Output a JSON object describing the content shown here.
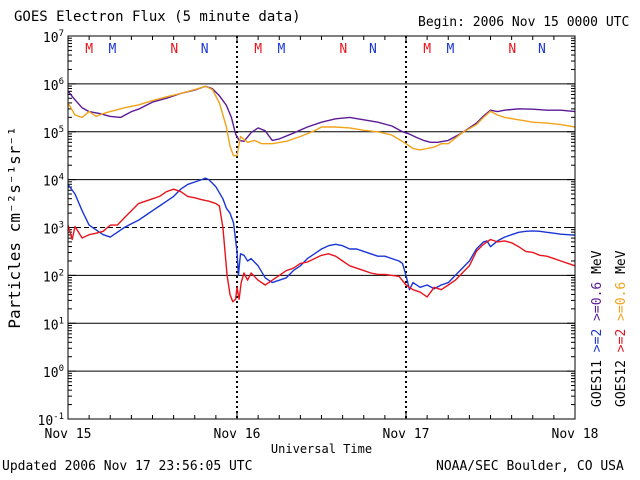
{
  "header": {
    "title": "GOES Electron Flux (5 minute data)",
    "begin": "Begin: 2006 Nov 15 0000 UTC"
  },
  "footer": {
    "updated": "Updated 2006 Nov 17 23:56:05 UTC",
    "credit": "NOAA/SEC Boulder, CO USA"
  },
  "colors": {
    "red": "#e8141c",
    "blue": "#1a35d6",
    "purple": "#5b1996",
    "orange": "#f0a31a"
  },
  "chart_data": {
    "type": "line",
    "title": "GOES Electron Flux (5 minute data)",
    "xlabel": "Universal Time",
    "ylabel": "Particles cm⁻²s⁻¹sr⁻¹",
    "yscale": "log",
    "xlim": [
      0,
      72
    ],
    "ylim_log10": [
      -1,
      7
    ],
    "x_unit": "hours since 2006 Nov 15 0000 UTC",
    "x_ticks": [
      {
        "x": 0,
        "label": "Nov 15"
      },
      {
        "x": 24,
        "label": "Nov 16"
      },
      {
        "x": 48,
        "label": "Nov 17"
      },
      {
        "x": 72,
        "label": "Nov 18"
      }
    ],
    "y_ticks": [
      {
        "base": "10",
        "exp": "7",
        "value_log10": 7
      },
      {
        "base": "10",
        "exp": "6",
        "value_log10": 6
      },
      {
        "base": "10",
        "exp": "5",
        "value_log10": 5
      },
      {
        "base": "10",
        "exp": "4",
        "value_log10": 4
      },
      {
        "base": "10",
        "exp": "3",
        "value_log10": 3
      },
      {
        "base": "10",
        "exp": "2",
        "value_log10": 2
      },
      {
        "base": "10",
        "exp": "1",
        "value_log10": 1
      },
      {
        "base": "10",
        "exp": "0",
        "value_log10": 0
      },
      {
        "base": "10",
        "exp": "-1",
        "value_log10": -1
      }
    ],
    "solid_gridlines_log10": [
      6,
      5,
      4,
      2,
      1,
      0
    ],
    "dashed_threshold_log10": 3,
    "day_boundaries_x": [
      24,
      48
    ],
    "markers": [
      {
        "x": 3.0,
        "label": "M",
        "color": "#e8141c"
      },
      {
        "x": 6.3,
        "label": "M",
        "color": "#1a35d6"
      },
      {
        "x": 15.1,
        "label": "N",
        "color": "#e8141c"
      },
      {
        "x": 19.4,
        "label": "N",
        "color": "#1a35d6"
      },
      {
        "x": 27.0,
        "label": "M",
        "color": "#e8141c"
      },
      {
        "x": 30.3,
        "label": "M",
        "color": "#1a35d6"
      },
      {
        "x": 39.1,
        "label": "N",
        "color": "#e8141c"
      },
      {
        "x": 43.3,
        "label": "N",
        "color": "#1a35d6"
      },
      {
        "x": 51.0,
        "label": "M",
        "color": "#e8141c"
      },
      {
        "x": 54.3,
        "label": "M",
        "color": "#1a35d6"
      },
      {
        "x": 63.1,
        "label": "N",
        "color": "#e8141c"
      },
      {
        "x": 67.3,
        "label": "N",
        "color": "#1a35d6"
      }
    ],
    "legend": {
      "satellites": [
        "GOES11",
        "GOES12"
      ],
      "goes11": [
        {
          "text": ">=2",
          "color": "#1a35d6"
        },
        {
          "text": ">=0.6",
          "color": "#5b1996"
        }
      ],
      "goes12": [
        {
          "text": ">=2",
          "color": "#e8141c"
        },
        {
          "text": ">=0.6",
          "color": "#f0a31a"
        }
      ],
      "unit": "MeV"
    },
    "series": [
      {
        "name": "GOES11 >=0.6 MeV",
        "color": "#5b1996",
        "points": [
          [
            0,
            5.85
          ],
          [
            0.8,
            5.7
          ],
          [
            2,
            5.5
          ],
          [
            3,
            5.42
          ],
          [
            4.5,
            5.38
          ],
          [
            6,
            5.32
          ],
          [
            7.5,
            5.3
          ],
          [
            9,
            5.42
          ],
          [
            10,
            5.47
          ],
          [
            12,
            5.62
          ],
          [
            14,
            5.7
          ],
          [
            16,
            5.8
          ],
          [
            18,
            5.87
          ],
          [
            19.5,
            5.95
          ],
          [
            20.5,
            5.9
          ],
          [
            21.5,
            5.75
          ],
          [
            22.5,
            5.55
          ],
          [
            23.2,
            5.3
          ],
          [
            23.8,
            4.95
          ],
          [
            24.3,
            4.82
          ],
          [
            25,
            4.8
          ],
          [
            26,
            4.98
          ],
          [
            27,
            5.08
          ],
          [
            28,
            5.02
          ],
          [
            29,
            4.82
          ],
          [
            30,
            4.85
          ],
          [
            32,
            4.97
          ],
          [
            34,
            5.1
          ],
          [
            36,
            5.2
          ],
          [
            38,
            5.27
          ],
          [
            40,
            5.3
          ],
          [
            42,
            5.25
          ],
          [
            44,
            5.2
          ],
          [
            46,
            5.12
          ],
          [
            47.5,
            5.0
          ],
          [
            48.5,
            4.95
          ],
          [
            49.5,
            4.88
          ],
          [
            50.5,
            4.82
          ],
          [
            51.5,
            4.78
          ],
          [
            52.5,
            4.78
          ],
          [
            54,
            4.82
          ],
          [
            56,
            4.98
          ],
          [
            58,
            5.18
          ],
          [
            59,
            5.33
          ],
          [
            60,
            5.45
          ],
          [
            61,
            5.42
          ],
          [
            62,
            5.45
          ],
          [
            64,
            5.48
          ],
          [
            66,
            5.47
          ],
          [
            68,
            5.45
          ],
          [
            70,
            5.45
          ],
          [
            72,
            5.42
          ]
        ]
      },
      {
        "name": "GOES12 >=0.6 MeV",
        "color": "#f0a31a",
        "points": [
          [
            0,
            5.6
          ],
          [
            1,
            5.35
          ],
          [
            2,
            5.3
          ],
          [
            3,
            5.42
          ],
          [
            4,
            5.32
          ],
          [
            5,
            5.38
          ],
          [
            6,
            5.42
          ],
          [
            8,
            5.5
          ],
          [
            10,
            5.56
          ],
          [
            12,
            5.65
          ],
          [
            14,
            5.73
          ],
          [
            16,
            5.8
          ],
          [
            18,
            5.88
          ],
          [
            19.5,
            5.95
          ],
          [
            20.5,
            5.88
          ],
          [
            21.5,
            5.6
          ],
          [
            22.5,
            5.1
          ],
          [
            23,
            4.7
          ],
          [
            23.5,
            4.5
          ],
          [
            24,
            4.5
          ],
          [
            24.5,
            4.9
          ],
          [
            25.5,
            4.78
          ],
          [
            26.5,
            4.82
          ],
          [
            27.5,
            4.75
          ],
          [
            29,
            4.75
          ],
          [
            31,
            4.8
          ],
          [
            33,
            4.9
          ],
          [
            35,
            5.02
          ],
          [
            36,
            5.1
          ],
          [
            38,
            5.1
          ],
          [
            40,
            5.08
          ],
          [
            42,
            5.03
          ],
          [
            44,
            5.0
          ],
          [
            46,
            4.93
          ],
          [
            48,
            4.75
          ],
          [
            49,
            4.65
          ],
          [
            50,
            4.62
          ],
          [
            51,
            4.65
          ],
          [
            52,
            4.68
          ],
          [
            53,
            4.75
          ],
          [
            54,
            4.75
          ],
          [
            56,
            4.98
          ],
          [
            58,
            5.15
          ],
          [
            59,
            5.3
          ],
          [
            60,
            5.43
          ],
          [
            61,
            5.35
          ],
          [
            62,
            5.3
          ],
          [
            64,
            5.25
          ],
          [
            66,
            5.2
          ],
          [
            68,
            5.18
          ],
          [
            70,
            5.15
          ],
          [
            72,
            5.1
          ]
        ]
      },
      {
        "name": "GOES11 >=2 MeV",
        "color": "#1a35d6",
        "points": [
          [
            0,
            3.9
          ],
          [
            1,
            3.7
          ],
          [
            2,
            3.35
          ],
          [
            3,
            3.05
          ],
          [
            4,
            2.95
          ],
          [
            5,
            2.85
          ],
          [
            6,
            2.8
          ],
          [
            7,
            2.9
          ],
          [
            8,
            3.0
          ],
          [
            9,
            3.08
          ],
          [
            10,
            3.15
          ],
          [
            11,
            3.25
          ],
          [
            12,
            3.35
          ],
          [
            13,
            3.45
          ],
          [
            14,
            3.55
          ],
          [
            15,
            3.65
          ],
          [
            16,
            3.8
          ],
          [
            17,
            3.9
          ],
          [
            18,
            3.95
          ],
          [
            19,
            4.0
          ],
          [
            19.5,
            4.03
          ],
          [
            20,
            4.0
          ],
          [
            21,
            3.85
          ],
          [
            22,
            3.6
          ],
          [
            22.5,
            3.4
          ],
          [
            23,
            3.3
          ],
          [
            23.5,
            3.1
          ],
          [
            24,
            2.5
          ],
          [
            24.2,
            2.0
          ],
          [
            24.5,
            2.45
          ],
          [
            25,
            2.42
          ],
          [
            25.5,
            2.3
          ],
          [
            26,
            2.35
          ],
          [
            27,
            2.2
          ],
          [
            28,
            1.95
          ],
          [
            29,
            1.85
          ],
          [
            30,
            1.9
          ],
          [
            31,
            1.95
          ],
          [
            32,
            2.1
          ],
          [
            33,
            2.2
          ],
          [
            34,
            2.35
          ],
          [
            35,
            2.45
          ],
          [
            36,
            2.55
          ],
          [
            37,
            2.62
          ],
          [
            38,
            2.65
          ],
          [
            39,
            2.62
          ],
          [
            40,
            2.55
          ],
          [
            41,
            2.55
          ],
          [
            42,
            2.5
          ],
          [
            43,
            2.45
          ],
          [
            44,
            2.4
          ],
          [
            45,
            2.4
          ],
          [
            46,
            2.35
          ],
          [
            47,
            2.3
          ],
          [
            47.5,
            2.25
          ],
          [
            48,
            2.0
          ],
          [
            48.5,
            1.7
          ],
          [
            49,
            1.85
          ],
          [
            50,
            1.75
          ],
          [
            51,
            1.8
          ],
          [
            52,
            1.72
          ],
          [
            53,
            1.8
          ],
          [
            54,
            1.85
          ],
          [
            55,
            2.0
          ],
          [
            56,
            2.15
          ],
          [
            57,
            2.3
          ],
          [
            58,
            2.55
          ],
          [
            59,
            2.7
          ],
          [
            59.5,
            2.72
          ],
          [
            60,
            2.6
          ],
          [
            61,
            2.72
          ],
          [
            62,
            2.8
          ],
          [
            63,
            2.85
          ],
          [
            64,
            2.9
          ],
          [
            65,
            2.92
          ],
          [
            66,
            2.93
          ],
          [
            67,
            2.92
          ],
          [
            68,
            2.9
          ],
          [
            69,
            2.88
          ],
          [
            70,
            2.86
          ],
          [
            71,
            2.85
          ],
          [
            72,
            2.84
          ]
        ]
      },
      {
        "name": "GOES12 >=2 MeV",
        "color": "#e8141c",
        "points": [
          [
            0,
            3.05
          ],
          [
            0.6,
            2.75
          ],
          [
            1,
            3.02
          ],
          [
            2,
            2.78
          ],
          [
            3,
            2.85
          ],
          [
            4,
            2.88
          ],
          [
            5,
            2.92
          ],
          [
            6,
            3.05
          ],
          [
            7,
            3.05
          ],
          [
            8,
            3.2
          ],
          [
            9,
            3.35
          ],
          [
            10,
            3.5
          ],
          [
            11,
            3.55
          ],
          [
            12,
            3.6
          ],
          [
            13,
            3.65
          ],
          [
            14,
            3.75
          ],
          [
            15,
            3.8
          ],
          [
            16,
            3.75
          ],
          [
            17,
            3.65
          ],
          [
            18,
            3.62
          ],
          [
            19,
            3.58
          ],
          [
            20,
            3.55
          ],
          [
            21,
            3.5
          ],
          [
            21.5,
            3.45
          ],
          [
            22,
            3.0
          ],
          [
            22.3,
            2.5
          ],
          [
            22.6,
            2.0
          ],
          [
            23,
            1.6
          ],
          [
            23.4,
            1.45
          ],
          [
            23.8,
            1.5
          ],
          [
            24,
            1.75
          ],
          [
            24.3,
            1.5
          ],
          [
            24.6,
            1.85
          ],
          [
            25,
            2.05
          ],
          [
            25.5,
            1.9
          ],
          [
            26,
            2.05
          ],
          [
            27,
            1.9
          ],
          [
            28,
            1.8
          ],
          [
            29,
            1.9
          ],
          [
            30,
            2.0
          ],
          [
            31,
            2.1
          ],
          [
            32,
            2.15
          ],
          [
            33,
            2.25
          ],
          [
            34,
            2.28
          ],
          [
            35,
            2.35
          ],
          [
            36,
            2.42
          ],
          [
            37,
            2.45
          ],
          [
            38,
            2.4
          ],
          [
            39,
            2.3
          ],
          [
            40,
            2.2
          ],
          [
            41,
            2.15
          ],
          [
            42,
            2.1
          ],
          [
            43,
            2.05
          ],
          [
            44,
            2.02
          ],
          [
            45,
            2.02
          ],
          [
            46,
            2.0
          ],
          [
            47,
            1.98
          ],
          [
            48,
            1.8
          ],
          [
            49,
            1.7
          ],
          [
            50,
            1.65
          ],
          [
            51,
            1.55
          ],
          [
            52,
            1.75
          ],
          [
            53,
            1.7
          ],
          [
            54,
            1.8
          ],
          [
            55,
            1.9
          ],
          [
            56,
            2.05
          ],
          [
            57,
            2.2
          ],
          [
            58,
            2.5
          ],
          [
            59,
            2.65
          ],
          [
            60,
            2.75
          ],
          [
            61,
            2.7
          ],
          [
            62,
            2.72
          ],
          [
            63,
            2.68
          ],
          [
            64,
            2.6
          ],
          [
            65,
            2.5
          ],
          [
            66,
            2.48
          ],
          [
            67,
            2.42
          ],
          [
            68,
            2.4
          ],
          [
            69,
            2.35
          ],
          [
            70,
            2.3
          ],
          [
            71,
            2.25
          ],
          [
            72,
            2.2
          ]
        ]
      }
    ]
  }
}
